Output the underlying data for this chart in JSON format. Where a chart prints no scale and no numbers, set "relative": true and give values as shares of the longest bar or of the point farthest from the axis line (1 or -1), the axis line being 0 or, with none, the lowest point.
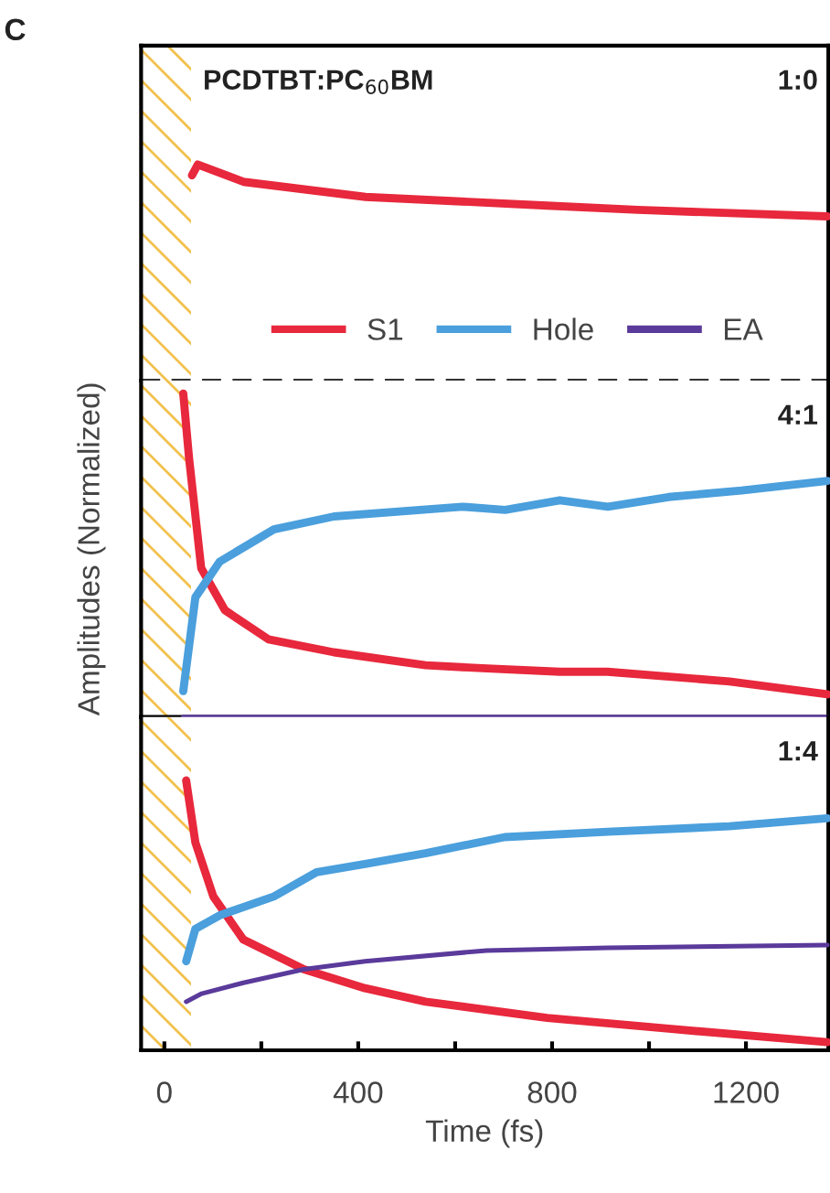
{
  "chart_data": [
    {
      "type": "line",
      "title": "PCDTBT:PC$_{60}$BM",
      "relative": true,
      "xlim": [
        -48,
        1370
      ],
      "tick_labels": false,
      "annotations": [
        "C",
        "1:0"
      ],
      "bands": [
        {
          "axis": "x",
          "from": -48,
          "to": 55,
          "color": "#f2c14e"
        }
      ],
      "ref_lines": [
        {
          "axis": "y",
          "value": 0,
          "color": "#333333",
          "line_style": "dashed"
        }
      ],
      "series": [
        {
          "color": "#e8283c",
          "x": [
            57,
            69,
            163,
            415,
            790,
            977,
            1368
          ],
          "values": [
            0.95,
            1,
            0.92,
            0.85,
            0.81,
            0.79,
            0.76
          ]
        }
      ]
    },
    {
      "type": "line",
      "ylabel": "Amplitudes (Normalized)",
      "relative": true,
      "xlim": [
        -48,
        1370
      ],
      "tick_labels": false,
      "annotations": [
        "4:1"
      ],
      "bands": [
        {
          "axis": "x",
          "from": -48,
          "to": 55,
          "color": "#f2c14e"
        }
      ],
      "series": [
        {
          "color": "#e8283c",
          "x": [
            39,
            51,
            76,
            125,
            215,
            350,
            539,
            666,
            816,
            914,
            1166,
            1368
          ],
          "values": [
            1,
            0.8,
            0.46,
            0.33,
            0.24,
            0.2,
            0.16,
            0.15,
            0.14,
            0.14,
            0.11,
            0.07
          ]
        },
        {
          "color": "#4a9fdc",
          "x": [
            39,
            64,
            114,
            226,
            350,
            615,
            703,
            816,
            915,
            1040,
            1191,
            1368
          ],
          "values": [
            0.08,
            0.37,
            0.48,
            0.58,
            0.62,
            0.65,
            0.64,
            0.67,
            0.65,
            0.68,
            0.7,
            0.73
          ]
        },
        {
          "color": "#5a3a9a",
          "x": [
            39,
            1368
          ],
          "values": [
            0,
            0
          ]
        }
      ]
    },
    {
      "type": "line",
      "xlabel": "Time (fs)",
      "relative": true,
      "xlim": [
        -48,
        1370
      ],
      "tick_labels": "x",
      "legend": "top",
      "annotations": [
        "1:4"
      ],
      "xticks": [
        0,
        {
          "value": 200,
          "label": null
        },
        400,
        {
          "value": 600,
          "label": null
        },
        800,
        {
          "value": 1000,
          "label": null
        },
        1200
      ],
      "bands": [
        {
          "axis": "x",
          "from": -48,
          "to": 55,
          "color": "#f2c14e"
        }
      ],
      "series": [
        {
          "name": "S1",
          "color": "#e8283c",
          "x": [
            45,
            64,
            101,
            163,
            288,
            414,
            539,
            790,
            1041,
            1368
          ],
          "values": [
            1,
            0.77,
            0.57,
            0.41,
            0.3,
            0.23,
            0.18,
            0.12,
            0.08,
            0.03
          ]
        },
        {
          "name": "Hole",
          "color": "#4a9fdc",
          "x": [
            45,
            64,
            114,
            226,
            314,
            414,
            539,
            702,
            915,
            1166,
            1368
          ],
          "values": [
            0.33,
            0.45,
            0.5,
            0.57,
            0.66,
            0.69,
            0.73,
            0.79,
            0.81,
            0.83,
            0.86
          ]
        },
        {
          "name": "EA",
          "color": "#5a3a9a",
          "x": [
            45,
            77,
            163,
            288,
            414,
            665,
            915,
            1368
          ],
          "values": [
            0.18,
            0.21,
            0.25,
            0.3,
            0.33,
            0.37,
            0.38,
            0.39
          ]
        }
      ]
    }
  ]
}
